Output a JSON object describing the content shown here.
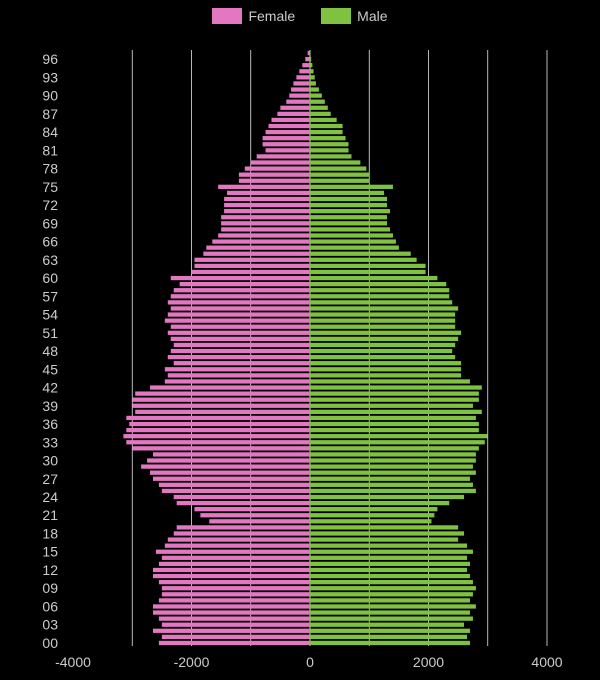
{
  "chart_data": {
    "type": "bar",
    "orientation": "horizontal",
    "categories": [
      "00",
      "01",
      "02",
      "03",
      "04",
      "05",
      "06",
      "07",
      "08",
      "09",
      "10",
      "11",
      "12",
      "13",
      "14",
      "15",
      "16",
      "17",
      "18",
      "19",
      "20",
      "21",
      "22",
      "23",
      "24",
      "25",
      "26",
      "27",
      "28",
      "29",
      "30",
      "31",
      "32",
      "33",
      "34",
      "35",
      "36",
      "37",
      "38",
      "39",
      "40",
      "41",
      "42",
      "43",
      "44",
      "45",
      "46",
      "47",
      "48",
      "49",
      "50",
      "51",
      "52",
      "53",
      "54",
      "55",
      "56",
      "57",
      "58",
      "59",
      "60",
      "61",
      "62",
      "63",
      "64",
      "65",
      "66",
      "67",
      "68",
      "69",
      "70",
      "71",
      "72",
      "73",
      "74",
      "75",
      "76",
      "77",
      "78",
      "79",
      "80",
      "81",
      "82",
      "83",
      "84",
      "85",
      "86",
      "87",
      "88",
      "89",
      "90",
      "91",
      "92",
      "93",
      "94",
      "95",
      "96",
      "97"
    ],
    "ytick_labels": [
      "00",
      "03",
      "06",
      "09",
      "12",
      "15",
      "18",
      "21",
      "24",
      "27",
      "30",
      "33",
      "36",
      "39",
      "42",
      "45",
      "48",
      "51",
      "54",
      "57",
      "60",
      "63",
      "66",
      "69",
      "72",
      "75",
      "78",
      "81",
      "84",
      "87",
      "90",
      "93",
      "96"
    ],
    "series": [
      {
        "name": "Female",
        "color": "#e377c2",
        "values": [
          -2550,
          -2500,
          -2650,
          -2500,
          -2550,
          -2650,
          -2650,
          -2550,
          -2500,
          -2500,
          -2550,
          -2650,
          -2650,
          -2550,
          -2500,
          -2600,
          -2450,
          -2400,
          -2300,
          -2250,
          -1700,
          -1850,
          -1950,
          -2250,
          -2300,
          -2500,
          -2550,
          -2650,
          -2700,
          -2850,
          -2750,
          -2650,
          -3000,
          -3100,
          -3150,
          -3100,
          -3050,
          -3100,
          -2950,
          -3000,
          -3000,
          -2950,
          -2700,
          -2450,
          -2400,
          -2450,
          -2300,
          -2400,
          -2350,
          -2300,
          -2350,
          -2400,
          -2350,
          -2450,
          -2400,
          -2350,
          -2400,
          -2350,
          -2300,
          -2200,
          -2350,
          -2000,
          -1950,
          -1950,
          -1800,
          -1750,
          -1650,
          -1550,
          -1500,
          -1500,
          -1500,
          -1450,
          -1450,
          -1450,
          -1400,
          -1550,
          -1200,
          -1200,
          -1100,
          -1000,
          -900,
          -750,
          -800,
          -800,
          -750,
          -700,
          -650,
          -550,
          -500,
          -400,
          -350,
          -320,
          -280,
          -230,
          -180,
          -130,
          -80,
          -40
        ]
      },
      {
        "name": "Male",
        "color": "#7fc241",
        "values": [
          2700,
          2650,
          2700,
          2600,
          2750,
          2700,
          2800,
          2700,
          2750,
          2800,
          2750,
          2700,
          2650,
          2700,
          2650,
          2750,
          2650,
          2500,
          2600,
          2500,
          2050,
          2100,
          2150,
          2350,
          2600,
          2800,
          2750,
          2700,
          2800,
          2750,
          2800,
          2800,
          2850,
          2950,
          3000,
          2850,
          2850,
          2800,
          2900,
          2750,
          2850,
          2850,
          2900,
          2700,
          2550,
          2550,
          2550,
          2450,
          2400,
          2450,
          2500,
          2550,
          2450,
          2450,
          2450,
          2500,
          2400,
          2350,
          2350,
          2300,
          2150,
          1950,
          1950,
          1800,
          1700,
          1500,
          1450,
          1400,
          1350,
          1300,
          1300,
          1350,
          1300,
          1300,
          1250,
          1400,
          1000,
          1000,
          950,
          850,
          700,
          650,
          650,
          600,
          550,
          550,
          450,
          350,
          300,
          250,
          200,
          150,
          100,
          80,
          60,
          40,
          20,
          10
        ]
      }
    ],
    "xlim": [
      -4200,
      4200
    ],
    "xticks": [
      -4000,
      -2000,
      0,
      2000,
      4000
    ],
    "xtick_labels": [
      "-4000",
      "-2000",
      "0",
      "2000",
      "4000"
    ],
    "grid": true,
    "legend_position": "top-center",
    "title": "",
    "xlabel": "",
    "ylabel": ""
  },
  "legend": {
    "female_label": "Female",
    "male_label": "Male",
    "female_color": "#e377c2",
    "male_color": "#7fc241"
  }
}
